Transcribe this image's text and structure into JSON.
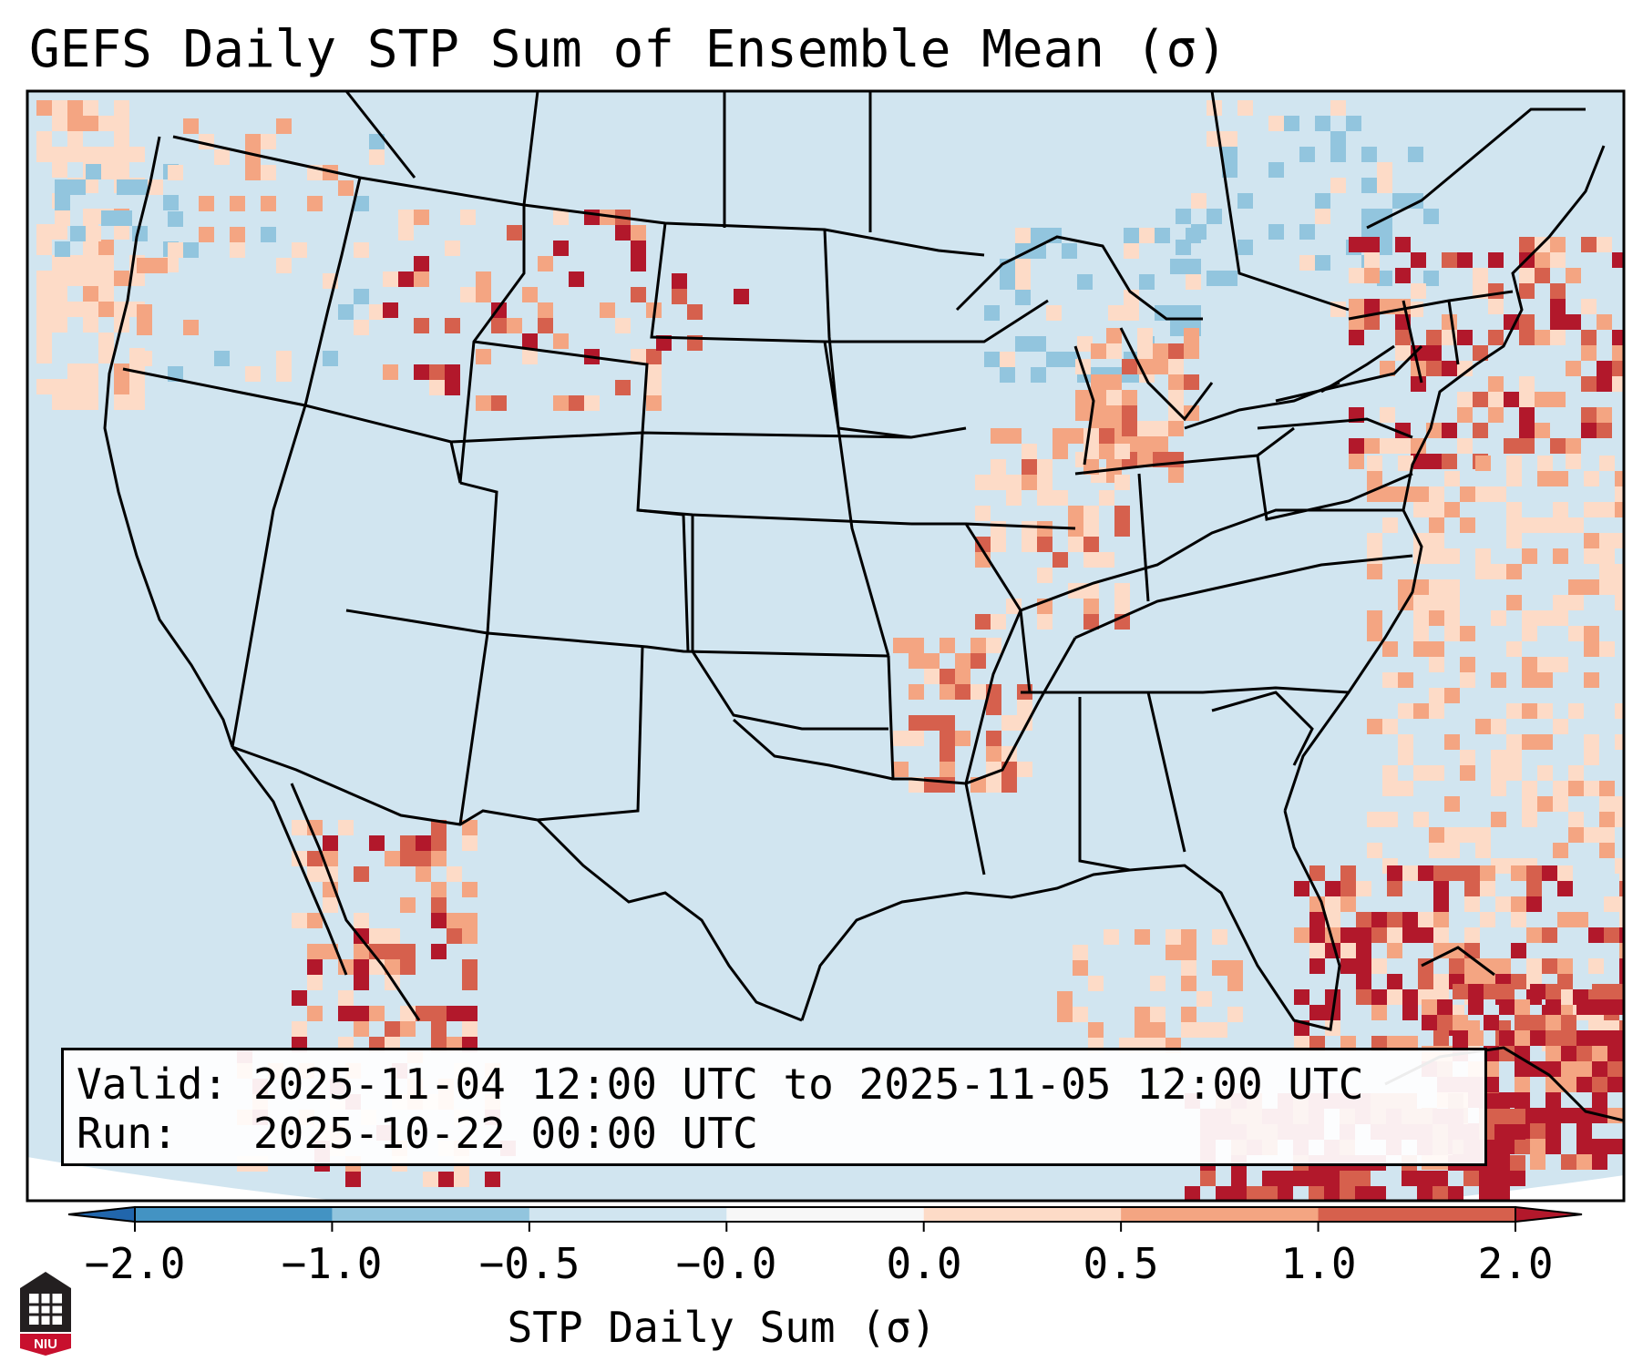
{
  "title": "GEFS Daily STP Sum of Ensemble Mean (σ)",
  "valid_label": "Valid:",
  "valid_value": "2025-11-04 12:00 UTC to 2025-11-05 12:00 UTC",
  "run_label": "Run:",
  "run_value": "2025-10-22 00:00 UTC",
  "colorbar": {
    "label": "STP Daily Sum (σ)",
    "ticks": [
      "−2.0",
      "−1.0",
      "−0.5",
      "−0.0",
      "0.0",
      "0.5",
      "1.0",
      "2.0"
    ],
    "colors": [
      "#4393c3",
      "#92c5de",
      "#d1e5f0",
      "#f7f7f7",
      "#fddbc7",
      "#f4a582",
      "#d6604d"
    ],
    "extend_low_color": "#2166ac",
    "extend_high_color": "#b2182b"
  },
  "map": {
    "background_color": "#d1e5f0",
    "outside_color": "#ffffff",
    "anomaly_regions": [
      "Pacific Northwest coast",
      "Northern Rockies",
      "Great Lakes / Midwest",
      "Mid-Mississippi Valley",
      "Baja California",
      "Western Atlantic",
      "Caribbean / Cuba"
    ]
  },
  "logo_text": "NIU"
}
